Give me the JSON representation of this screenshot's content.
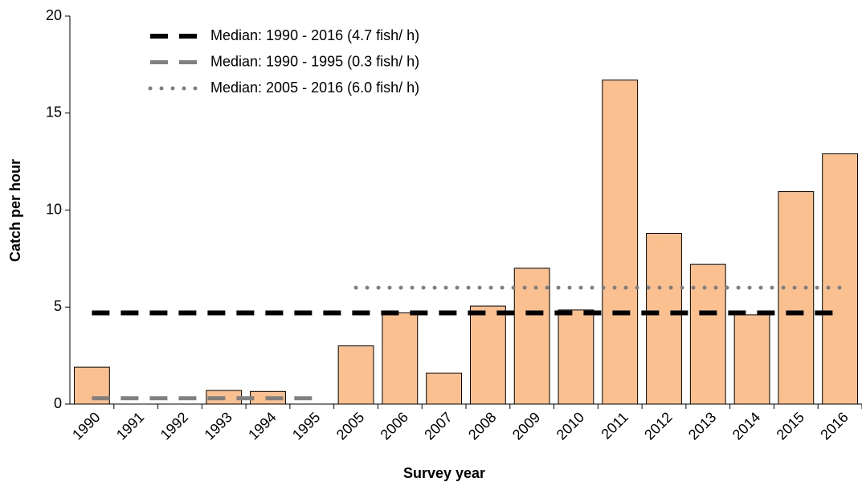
{
  "chart_data": {
    "type": "bar",
    "x_label": "Survey year",
    "y_label": "Catch per hour",
    "categories": [
      "1990",
      "1991",
      "1992",
      "1993",
      "1994",
      "1995",
      "2005",
      "2006",
      "2007",
      "2008",
      "2009",
      "2010",
      "2011",
      "2012",
      "2013",
      "2014",
      "2015",
      "2016"
    ],
    "values": [
      1.9,
      0,
      0,
      0.7,
      0.65,
      0,
      3.0,
      4.7,
      1.6,
      5.05,
      7.0,
      4.85,
      16.7,
      8.8,
      7.2,
      4.6,
      10.95,
      12.9
    ],
    "color": "#fac090",
    "series": [
      {
        "name": "Median: 1990 - 2016 (4.7 fish/ h)",
        "color": "#000000",
        "style": "dashed",
        "values": [
          4.7,
          4.7,
          4.7,
          4.7,
          4.7,
          4.7,
          4.7,
          4.7,
          4.7,
          4.7,
          4.7,
          4.7,
          4.7,
          4.7,
          4.7,
          4.7,
          4.7,
          4.7
        ]
      },
      {
        "name": "Median: 1990 - 1995 (0.3 fish/ h)",
        "color": "#808080",
        "style": "dashed",
        "values": [
          0.3,
          0.3,
          0.3,
          0.3,
          0.3,
          0.3,
          null,
          null,
          null,
          null,
          null,
          null,
          null,
          null,
          null,
          null,
          null,
          null
        ]
      },
      {
        "name": "Median: 2005 - 2016 (6.0 fish/ h)",
        "color": "#808080",
        "style": "dotted",
        "values": [
          null,
          null,
          null,
          null,
          null,
          null,
          6.0,
          6.0,
          6.0,
          6.0,
          6.0,
          6.0,
          6.0,
          6.0,
          6.0,
          6.0,
          6.0,
          6.0
        ]
      }
    ],
    "ylim": [
      0,
      20
    ],
    "yticks": [
      0,
      5,
      10,
      15,
      20
    ],
    "grid": false,
    "legend": "top-left"
  }
}
